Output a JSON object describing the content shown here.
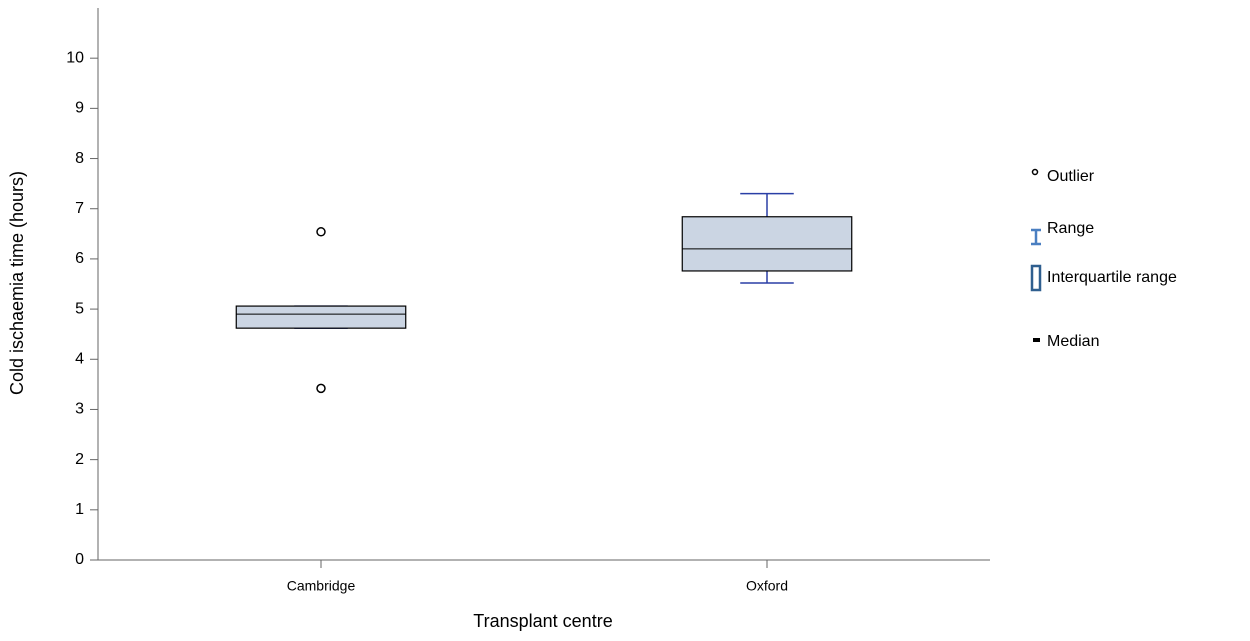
{
  "chart_data": {
    "type": "box",
    "x_label": "Transplant centre",
    "y_label": "Cold ischaemia time (hours)",
    "categories": [
      "Cambridge",
      "Oxford"
    ],
    "boxes": [
      {
        "min": 4.62,
        "q1": 4.62,
        "median": 4.9,
        "q3": 5.06,
        "max": 5.06,
        "outliers": [
          6.54,
          3.42
        ]
      },
      {
        "min": 5.52,
        "q1": 5.76,
        "median": 6.2,
        "q3": 6.84,
        "max": 7.3,
        "outliers": []
      }
    ],
    "box_color": "#cbd5e3",
    "whisker_color": "#2a3fa6",
    "ylim": [
      0,
      11
    ],
    "yticks": [
      0,
      1,
      2,
      3,
      4,
      5,
      6,
      7,
      8,
      9,
      10
    ],
    "legend": [
      "Outlier",
      "Range",
      "Interquartile range",
      "Median"
    ]
  }
}
